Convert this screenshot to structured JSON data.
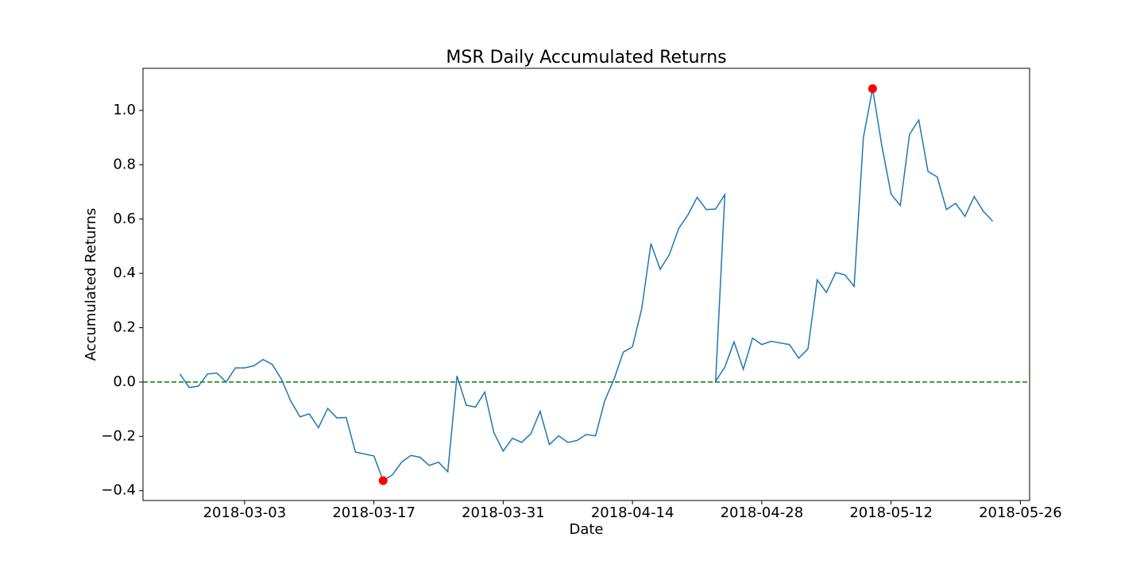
{
  "chart_data": {
    "type": "line",
    "title": "MSR Daily Accumulated Returns",
    "x_label": "Date",
    "y_label": "Accumulated Returns",
    "x": [
      "2018-02-24",
      "2018-02-25",
      "2018-02-26",
      "2018-02-27",
      "2018-02-28",
      "2018-03-01",
      "2018-03-02",
      "2018-03-03",
      "2018-03-04",
      "2018-03-05",
      "2018-03-06",
      "2018-03-07",
      "2018-03-08",
      "2018-03-09",
      "2018-03-10",
      "2018-03-11",
      "2018-03-12",
      "2018-03-13",
      "2018-03-14",
      "2018-03-15",
      "2018-03-17",
      "2018-03-18",
      "2018-03-19",
      "2018-03-20",
      "2018-03-21",
      "2018-03-22",
      "2018-03-23",
      "2018-03-24",
      "2018-03-25",
      "2018-03-26",
      "2018-03-27",
      "2018-03-28",
      "2018-03-29",
      "2018-03-30",
      "2018-03-31",
      "2018-04-01",
      "2018-04-02",
      "2018-04-03",
      "2018-04-04",
      "2018-04-05",
      "2018-04-06",
      "2018-04-07",
      "2018-04-08",
      "2018-04-09",
      "2018-04-10",
      "2018-04-11",
      "2018-04-12",
      "2018-04-13",
      "2018-04-14",
      "2018-04-15",
      "2018-04-16",
      "2018-04-17",
      "2018-04-18",
      "2018-04-19",
      "2018-04-20",
      "2018-04-21",
      "2018-04-22",
      "2018-04-23",
      "2018-04-24",
      "2018-04-23",
      "2018-04-24",
      "2018-04-25",
      "2018-04-26",
      "2018-04-27",
      "2018-04-28",
      "2018-04-29",
      "2018-04-30",
      "2018-05-01",
      "2018-05-02",
      "2018-05-03",
      "2018-05-04",
      "2018-05-05",
      "2018-05-06",
      "2018-05-07",
      "2018-05-08",
      "2018-05-09",
      "2018-05-10",
      "2018-05-11",
      "2018-05-12",
      "2018-05-13",
      "2018-05-14",
      "2018-05-15",
      "2018-05-16",
      "2018-05-17",
      "2018-05-18",
      "2018-05-19",
      "2018-05-20",
      "2018-05-21",
      "2018-05-22",
      "2018-05-23"
    ],
    "series": [
      {
        "color": "#1f77b4",
        "values": [
          0.03,
          -0.02,
          -0.015,
          0.03,
          0.033,
          0.0,
          0.052,
          0.052,
          0.06,
          0.083,
          0.065,
          0.01,
          -0.07,
          -0.128,
          -0.117,
          -0.168,
          -0.097,
          -0.132,
          -0.13,
          -0.258,
          -0.272,
          -0.363,
          -0.342,
          -0.295,
          -0.27,
          -0.277,
          -0.307,
          -0.295,
          -0.33,
          0.023,
          -0.085,
          -0.092,
          -0.037,
          -0.187,
          -0.254,
          -0.207,
          -0.222,
          -0.19,
          -0.108,
          -0.23,
          -0.198,
          -0.222,
          -0.215,
          -0.193,
          -0.198,
          -0.068,
          0.01,
          0.11,
          0.13,
          0.27,
          0.51,
          0.415,
          0.47,
          0.565,
          0.615,
          0.68,
          0.635,
          0.637,
          0.69,
          0.003,
          0.055,
          0.148,
          0.047,
          0.162,
          0.138,
          0.15,
          0.144,
          0.138,
          0.088,
          0.122,
          0.376,
          0.33,
          0.403,
          0.395,
          0.352,
          0.9,
          1.08,
          0.87,
          0.692,
          0.65,
          0.912,
          0.965,
          0.775,
          0.755,
          0.635,
          0.658,
          0.61,
          0.683,
          0.628,
          0.592
        ]
      }
    ],
    "highlights": {
      "color": "#ff0000",
      "x": [
        "2018-03-18",
        "2018-05-10"
      ],
      "values": [
        -0.363,
        1.08
      ]
    },
    "hline": {
      "value": 0,
      "color": "#008000"
    },
    "xlim": [
      "2018-02-20",
      "2018-05-27"
    ],
    "xticks": [
      "2018-03-03",
      "2018-03-17",
      "2018-03-31",
      "2018-04-14",
      "2018-04-28",
      "2018-05-12",
      "2018-05-26"
    ],
    "ylim": [
      -0.436,
      1.155
    ],
    "yticks": [
      {
        "value": -0.4,
        "label": "−0.4"
      },
      {
        "value": -0.2,
        "label": "−0.2"
      },
      {
        "value": 0,
        "label": "0.0"
      },
      {
        "value": 0.2,
        "label": "0.2"
      },
      {
        "value": 0.4,
        "label": "0.4"
      },
      {
        "value": 0.6,
        "label": "0.6"
      },
      {
        "value": 0.8,
        "label": "0.8"
      },
      {
        "value": 1,
        "label": "1.0"
      }
    ]
  }
}
